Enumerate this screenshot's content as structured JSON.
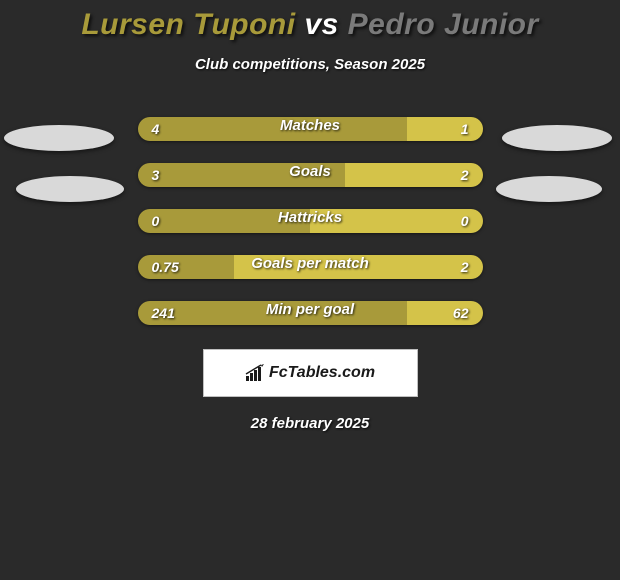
{
  "header": {
    "player1": "Lursen Tuponi",
    "vs": "vs",
    "player2": "Pedro Junior",
    "subtitle": "Club competitions, Season 2025"
  },
  "colors": {
    "left": "#a89a3a",
    "right": "#d4c349",
    "background": "#2a2a2a"
  },
  "stats": [
    {
      "label": "Matches",
      "left_val": "4",
      "right_val": "1",
      "left_pct": 78
    },
    {
      "label": "Goals",
      "left_val": "3",
      "right_val": "2",
      "left_pct": 60
    },
    {
      "label": "Hattricks",
      "left_val": "0",
      "right_val": "0",
      "left_pct": 50
    },
    {
      "label": "Goals per match",
      "left_val": "0.75",
      "right_val": "2",
      "left_pct": 28
    },
    {
      "label": "Min per goal",
      "left_val": "241",
      "right_val": "62",
      "left_pct": 78
    }
  ],
  "footer": {
    "logo": "FcTables.com",
    "date": "28 february 2025"
  }
}
